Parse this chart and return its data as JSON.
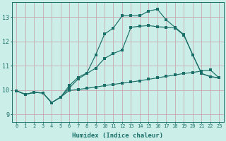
{
  "xlabel": "Humidex (Indice chaleur)",
  "xlim": [
    -0.5,
    23.5
  ],
  "ylim": [
    8.7,
    13.6
  ],
  "xticks": [
    0,
    1,
    2,
    3,
    4,
    5,
    6,
    7,
    8,
    9,
    10,
    11,
    12,
    13,
    14,
    15,
    16,
    17,
    18,
    19,
    20,
    21,
    22,
    23
  ],
  "yticks": [
    9,
    10,
    11,
    12,
    13
  ],
  "bg_color": "#cceee8",
  "grid_color": "#c8a8b0",
  "line_color": "#1a7068",
  "line1_y": [
    9.97,
    9.82,
    9.9,
    9.88,
    9.48,
    9.7,
    10.18,
    10.52,
    10.7,
    11.45,
    12.3,
    12.55,
    13.05,
    13.05,
    13.05,
    13.25,
    13.32,
    12.88,
    12.58,
    12.28,
    11.45,
    10.68,
    10.55,
    10.5
  ],
  "line2_y": [
    9.97,
    9.82,
    9.9,
    9.88,
    9.48,
    9.7,
    10.08,
    10.45,
    10.68,
    10.9,
    11.3,
    11.5,
    11.65,
    12.58,
    12.62,
    12.65,
    12.6,
    12.58,
    12.55,
    12.25,
    11.45,
    10.68,
    10.55,
    10.5
  ],
  "line3_y": [
    9.97,
    9.82,
    9.9,
    9.88,
    9.48,
    9.7,
    9.98,
    10.02,
    10.07,
    10.12,
    10.18,
    10.23,
    10.28,
    10.33,
    10.38,
    10.44,
    10.5,
    10.56,
    10.62,
    10.68,
    10.72,
    10.78,
    10.82,
    10.5
  ],
  "figsize": [
    3.2,
    2.0
  ],
  "dpi": 100
}
